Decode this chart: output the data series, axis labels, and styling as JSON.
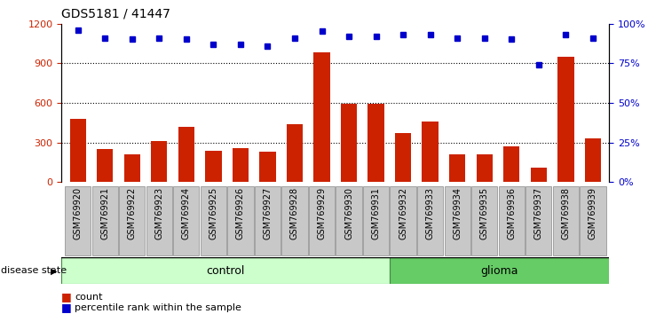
{
  "title": "GDS5181 / 41447",
  "samples": [
    "GSM769920",
    "GSM769921",
    "GSM769922",
    "GSM769923",
    "GSM769924",
    "GSM769925",
    "GSM769926",
    "GSM769927",
    "GSM769928",
    "GSM769929",
    "GSM769930",
    "GSM769931",
    "GSM769932",
    "GSM769933",
    "GSM769934",
    "GSM769935",
    "GSM769936",
    "GSM769937",
    "GSM769938",
    "GSM769939"
  ],
  "counts": [
    480,
    250,
    210,
    310,
    415,
    240,
    260,
    230,
    440,
    980,
    590,
    590,
    370,
    460,
    210,
    210,
    270,
    110,
    950,
    330
  ],
  "percentiles": [
    96,
    91,
    90,
    91,
    90,
    87,
    87,
    86,
    91,
    95,
    92,
    92,
    93,
    93,
    91,
    91,
    90,
    74,
    93,
    91
  ],
  "control_count": 12,
  "control_label": "control",
  "glioma_label": "glioma",
  "bar_color": "#cc2200",
  "dot_color": "#0000cc",
  "left_ylim": [
    0,
    1200
  ],
  "left_yticks": [
    0,
    300,
    600,
    900,
    1200
  ],
  "right_ylim": [
    0,
    100
  ],
  "right_yticks": [
    0,
    25,
    50,
    75,
    100
  ],
  "right_yticklabels": [
    "0%",
    "25%",
    "50%",
    "75%",
    "100%"
  ],
  "control_bg": "#ccffcc",
  "glioma_bg": "#66cc66",
  "label_bg": "#c8c8c8",
  "grid_color": "#000000",
  "legend_count_label": "count",
  "legend_pct_label": "percentile rank within the sample",
  "plot_bg": "#ffffff"
}
